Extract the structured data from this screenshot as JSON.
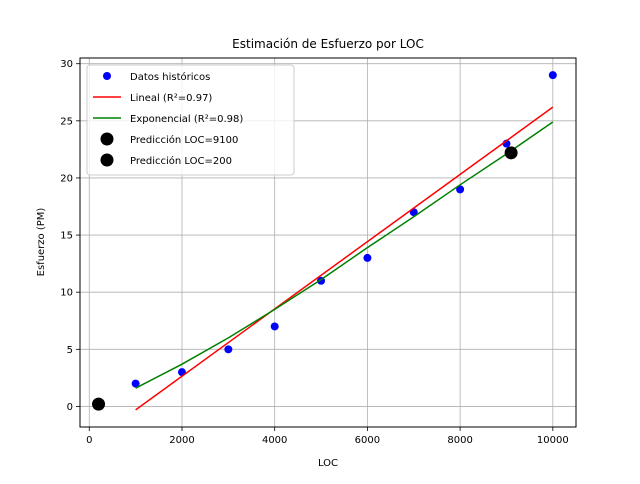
{
  "chart_data": {
    "type": "scatter",
    "title": "Estimación de Esfuerzo por LOC",
    "xlabel": "LOC",
    "ylabel": "Esfuerzo (PM)",
    "xlim": [
      -200,
      10500
    ],
    "ylim": [
      -1.8,
      30.5
    ],
    "xticks": [
      0,
      2000,
      4000,
      6000,
      8000,
      10000
    ],
    "yticks": [
      0,
      5,
      10,
      15,
      20,
      25,
      30
    ],
    "grid": true,
    "legend_position": "top-left",
    "colors": {
      "historical": "#0000ff",
      "linear": "#ff0000",
      "exponential": "#008000",
      "prediction": "#000000"
    },
    "series": [
      {
        "name": "Datos históricos",
        "kind": "scatter",
        "x": [
          1000,
          2000,
          3000,
          4000,
          5000,
          6000,
          7000,
          8000,
          9000,
          10000
        ],
        "y": [
          2,
          3,
          5,
          7,
          11,
          13,
          17,
          19,
          23,
          29
        ]
      },
      {
        "name": "Lineal (R²=0.97)",
        "kind": "line",
        "x": [
          1000,
          10000
        ],
        "y": [
          -0.3,
          26.2
        ]
      },
      {
        "name": "Exponencial (R²=0.98)",
        "kind": "line",
        "x": [
          1000,
          2000,
          3000,
          4000,
          5000,
          6000,
          7000,
          8000,
          9000,
          10000
        ],
        "y": [
          1.6,
          3.7,
          6.0,
          8.5,
          11.1,
          13.9,
          16.6,
          19.4,
          22.1,
          24.9
        ]
      },
      {
        "name": "Predicción LOC=9100",
        "kind": "point",
        "x": [
          9100
        ],
        "y": [
          22.2
        ]
      },
      {
        "name": "Predicción LOC=200",
        "kind": "point",
        "x": [
          200
        ],
        "y": [
          0.2
        ]
      }
    ]
  }
}
